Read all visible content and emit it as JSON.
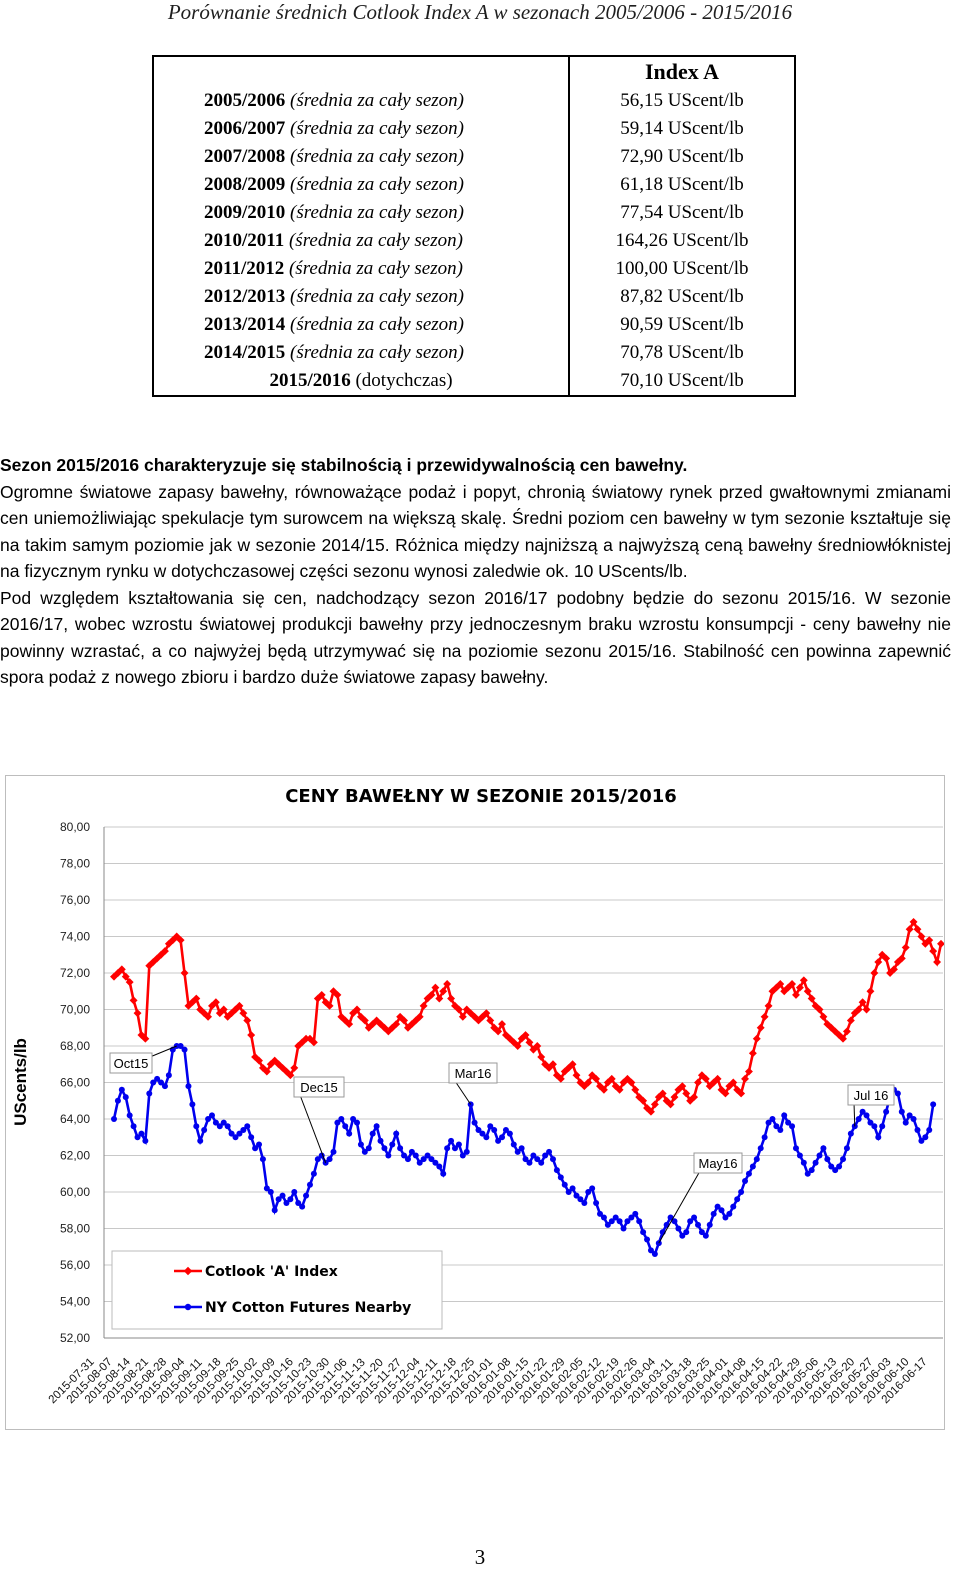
{
  "header": {
    "title": "Porównanie średnich Cotlook Index A w sezonach 2005/2006 -  2015/2016"
  },
  "table": {
    "header": "Index A",
    "rows": [
      {
        "season": "2005/2006",
        "note": "(średnia za cały sezon)",
        "value": "56,15 UScent/lb"
      },
      {
        "season": "2006/2007",
        "note": "(średnia za cały sezon)",
        "value": "59,14 UScent/lb"
      },
      {
        "season": "2007/2008",
        "note": "(średnia za cały sezon)",
        "value": "72,90 UScent/lb"
      },
      {
        "season": "2008/2009",
        "note": "(średnia za cały sezon)",
        "value": "61,18 UScent/lb"
      },
      {
        "season": "2009/2010",
        "note": "(średnia za cały sezon)",
        "value": "77,54 UScent/lb"
      },
      {
        "season": "2010/2011",
        "note": "(średnia za cały sezon)",
        "value": "164,26 UScent/lb"
      },
      {
        "season": "2011/2012",
        "note": "(średnia za cały sezon)",
        "value": "100,00 UScent/lb"
      },
      {
        "season": "2012/2013",
        "note": "(średnia za cały sezon)",
        "value": "87,82 UScent/lb"
      },
      {
        "season": "2013/2014",
        "note": "(średnia za cały sezon)",
        "value": "90,59 UScent/lb"
      },
      {
        "season": "2014/2015",
        "note": "(średnia za cały sezon)",
        "value": "70,78 UScent/lb"
      },
      {
        "season": "2015/2016",
        "note": "(dotychczas)",
        "value": "70,10 UScent/lb"
      }
    ]
  },
  "body": {
    "lead": "Sezon 2015/2016 charakteryzuje się stabilnością i przewidywalnością cen bawełny.",
    "p1": "Ogromne światowe zapasy bawełny, równoważące podaż i popyt,  chronią światowy rynek przed gwałtownymi zmianami cen uniemożliwiając spekulacje tym surowcem na większą skalę. Średni poziom cen bawełny w tym sezonie kształtuje się na takim samym poziomie jak w sezonie 2014/15. Różnica między najniższą a najwyższą ceną bawełny średniowłóknistej na fizycznym rynku w dotychczasowej części sezonu wynosi zaledwie ok. 10 UScents/lb.",
    "p2": "Pod względem kształtowania się cen, nadchodzący sezon 2016/17 podobny będzie do sezonu 2015/16. W sezonie 2016/17, wobec wzrostu światowej produkcji bawełny przy jednoczesnym braku wzrostu konsumpcji - ceny bawełny nie powinny wzrastać, a co najwyżej będą utrzymywać się na poziomie sezonu 2015/16. Stabilność cen powinna zapewnić spora podaż z nowego zbioru i bardzo duże światowe  zapasy bawełny."
  },
  "chart_data": {
    "type": "line",
    "title": "CENY BAWEŁNY W SEZONIE 2015/2016",
    "ylabel": "UScents/lb",
    "xlabel": "",
    "ylim": [
      52,
      80
    ],
    "yticks": [
      "52,00",
      "54,00",
      "56,00",
      "58,00",
      "60,00",
      "62,00",
      "64,00",
      "66,00",
      "68,00",
      "70,00",
      "72,00",
      "74,00",
      "76,00",
      "78,00",
      "80,00"
    ],
    "x_tick_labels": [
      "2015-07-31",
      "2015-08-07",
      "2015-08-14",
      "2015-08-21",
      "2015-08-28",
      "2015-09-04",
      "2015-09-11",
      "2015-09-18",
      "2015-09-25",
      "2015-10-02",
      "2015-10-09",
      "2015-10-16",
      "2015-10-23",
      "2015-10-30",
      "2015-11-06",
      "2015-11-13",
      "2015-11-20",
      "2015-11-27",
      "2015-12-04",
      "2015-12-11",
      "2015-12-18",
      "2015-12-25",
      "2016-01-01",
      "2016-01-08",
      "2016-01-15",
      "2016-01-22",
      "2016-01-29",
      "2016-02-05",
      "2016-02-12",
      "2016-02-19",
      "2016-02-26",
      "2016-03-04",
      "2016-03-11",
      "2016-03-18",
      "2016-03-25",
      "2016-04-01",
      "2016-04-08",
      "2016-04-15",
      "2016-04-22",
      "2016-04-29",
      "2016-05-06",
      "2016-05-13",
      "2016-05-20",
      "2016-05-27",
      "2016-06-03",
      "2016-06-10",
      "2016-06-17"
    ],
    "legend": "bottom-left",
    "grid": true,
    "series": [
      {
        "name": "Cotlook 'A' Index",
        "color": "#ff0000",
        "values": [
          71.8,
          72.0,
          72.2,
          71.8,
          71.5,
          70.5,
          69.8,
          68.6,
          68.4,
          72.4,
          72.6,
          72.8,
          73.0,
          73.2,
          73.6,
          73.8,
          74.0,
          73.8,
          72.0,
          70.2,
          70.4,
          70.6,
          70.0,
          69.8,
          69.6,
          70.2,
          70.4,
          69.8,
          70.0,
          69.6,
          69.8,
          70.0,
          70.2,
          69.8,
          69.4,
          68.6,
          67.4,
          67.2,
          66.8,
          66.6,
          67.0,
          67.2,
          67.0,
          66.8,
          66.6,
          66.4,
          66.8,
          68.0,
          68.2,
          68.4,
          68.4,
          68.2,
          70.6,
          70.8,
          70.4,
          70.2,
          71.0,
          70.8,
          69.6,
          69.4,
          69.2,
          69.8,
          70.0,
          69.6,
          69.4,
          69.0,
          69.2,
          69.4,
          69.2,
          69.0,
          68.8,
          69.0,
          69.2,
          69.6,
          69.4,
          69.0,
          69.2,
          69.4,
          69.6,
          70.2,
          70.6,
          70.8,
          71.2,
          70.6,
          71.0,
          71.4,
          70.6,
          70.2,
          70.0,
          69.6,
          70.0,
          69.8,
          69.6,
          69.4,
          69.6,
          69.8,
          69.4,
          69.0,
          68.8,
          69.2,
          68.6,
          68.4,
          68.2,
          68.0,
          68.4,
          68.6,
          68.2,
          67.8,
          68.0,
          67.4,
          67.0,
          66.8,
          67.0,
          66.4,
          66.2,
          66.6,
          66.8,
          67.0,
          66.4,
          66.0,
          65.8,
          66.0,
          66.4,
          66.2,
          65.8,
          65.6,
          66.0,
          66.2,
          65.8,
          65.6,
          66.0,
          66.2,
          66.0,
          65.6,
          65.2,
          65.0,
          64.6,
          64.4,
          64.8,
          65.2,
          65.4,
          65.0,
          64.8,
          65.2,
          65.6,
          65.8,
          65.4,
          65.0,
          65.2,
          66.0,
          66.4,
          66.2,
          65.8,
          66.0,
          66.2,
          65.6,
          65.4,
          65.8,
          66.0,
          65.6,
          65.4,
          66.2,
          66.6,
          67.6,
          68.4,
          69.0,
          69.6,
          70.2,
          71.0,
          71.2,
          71.4,
          71.0,
          71.2,
          71.4,
          70.8,
          71.2,
          71.6,
          71.0,
          70.6,
          70.2,
          70.0,
          69.6,
          69.2,
          69.0,
          68.8,
          68.6,
          68.4,
          68.8,
          69.4,
          69.8,
          70.0,
          70.4,
          70.0,
          71.0,
          72.0,
          72.6,
          73.0,
          72.8,
          72.0,
          72.2,
          72.6,
          72.8,
          73.4,
          74.4,
          74.8,
          74.4,
          74.0,
          73.6,
          73.8,
          73.2,
          72.6,
          73.6
        ]
      },
      {
        "name": "NY Cotton Futures Nearby",
        "color": "#0000ee",
        "values": [
          64.0,
          65.0,
          65.6,
          65.2,
          64.2,
          63.6,
          63.0,
          63.2,
          62.8,
          65.4,
          66.0,
          66.2,
          66.0,
          65.8,
          66.4,
          67.8,
          68.0,
          68.0,
          67.8,
          65.8,
          64.8,
          63.6,
          62.8,
          63.4,
          64.0,
          64.2,
          63.8,
          63.6,
          63.8,
          63.6,
          63.2,
          63.0,
          63.2,
          63.4,
          63.6,
          63.0,
          62.4,
          62.6,
          61.8,
          60.2,
          60.0,
          59.0,
          59.6,
          59.8,
          59.4,
          59.6,
          60.0,
          59.4,
          59.2,
          59.8,
          60.4,
          61.0,
          61.8,
          62.0,
          61.6,
          61.8,
          62.2,
          63.8,
          64.0,
          63.6,
          63.2,
          64.0,
          63.8,
          62.6,
          62.2,
          62.4,
          63.2,
          63.6,
          62.8,
          62.4,
          62.0,
          62.6,
          63.2,
          62.4,
          62.0,
          61.8,
          62.2,
          62.0,
          61.6,
          61.8,
          62.0,
          61.8,
          61.6,
          61.4,
          61.0,
          62.4,
          62.8,
          62.4,
          62.6,
          62.0,
          62.2,
          64.8,
          63.8,
          63.4,
          63.2,
          63.0,
          63.6,
          63.4,
          62.8,
          63.0,
          63.4,
          63.2,
          62.6,
          62.2,
          62.4,
          61.8,
          61.6,
          62.0,
          61.8,
          61.6,
          62.0,
          62.2,
          61.8,
          61.2,
          60.8,
          60.4,
          60.0,
          60.2,
          59.8,
          59.6,
          59.4,
          60.0,
          60.2,
          59.4,
          58.8,
          58.6,
          58.2,
          58.4,
          58.6,
          58.4,
          58.0,
          58.4,
          58.6,
          58.8,
          58.4,
          57.8,
          57.4,
          56.8,
          56.6,
          57.2,
          57.8,
          58.2,
          58.6,
          58.4,
          58.0,
          57.6,
          57.8,
          58.4,
          58.6,
          58.2,
          57.8,
          57.6,
          58.2,
          58.8,
          59.2,
          59.0,
          58.6,
          58.8,
          59.2,
          59.6,
          60.0,
          60.6,
          61.0,
          61.4,
          61.8,
          62.4,
          63.0,
          63.8,
          64.0,
          63.6,
          63.4,
          64.2,
          63.8,
          63.6,
          62.4,
          62.0,
          61.6,
          61.0,
          61.2,
          61.6,
          62.0,
          62.4,
          61.8,
          61.4,
          61.2,
          61.4,
          61.8,
          62.4,
          63.2,
          63.6,
          64.0,
          64.4,
          64.2,
          63.8,
          63.6,
          63.0,
          63.6,
          64.4,
          65.2,
          65.6,
          65.4,
          64.4,
          63.8,
          64.2,
          64.0,
          63.4,
          62.8,
          63.0,
          63.4,
          64.8
        ]
      }
    ],
    "annotations": [
      {
        "label": "Oct15",
        "series": 1,
        "index": 16
      },
      {
        "label": "Dec15",
        "series": 1,
        "index": 54
      },
      {
        "label": "Mar16",
        "series": 1,
        "index": 91
      },
      {
        "label": "May16",
        "series": 1,
        "index": 139
      },
      {
        "label": "Jul 16",
        "series": 1,
        "index": 189
      }
    ]
  },
  "footer": {
    "page_number": "3"
  }
}
